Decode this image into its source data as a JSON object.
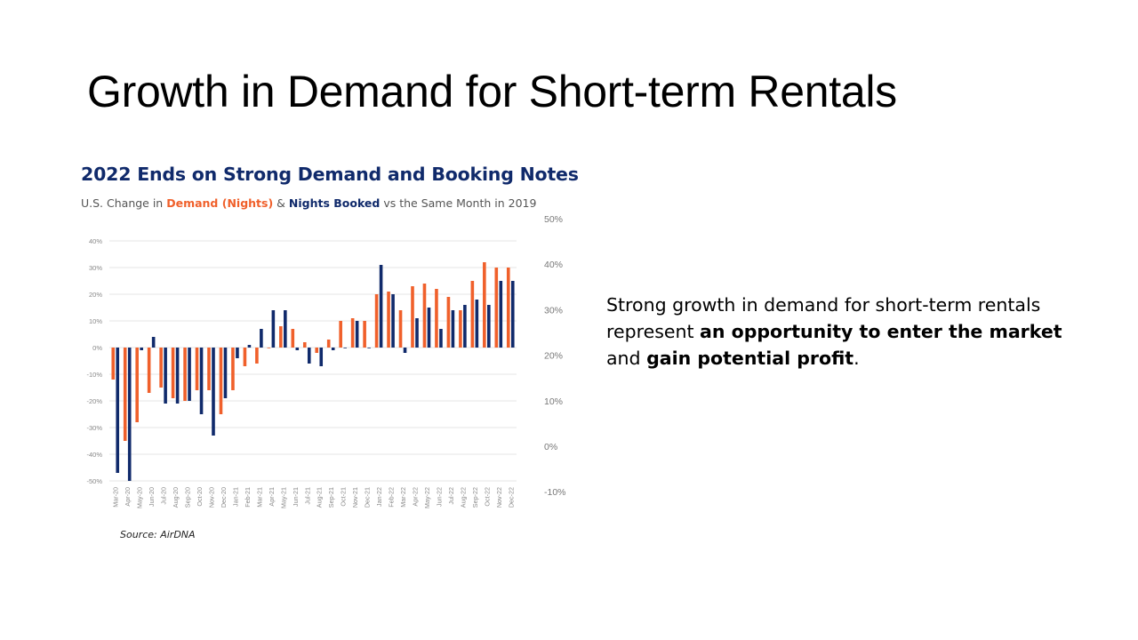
{
  "slide": {
    "title": "Growth in Demand for Short-term Rentals",
    "body_text_1": "Strong growth in demand for short-term rentals represent ",
    "body_bold_1": "an opportunity to enter the market",
    "body_text_2": " and ",
    "body_bold_2": "gain potential profit",
    "body_text_3": "."
  },
  "chart_data": {
    "type": "bar",
    "title": "2022 Ends on Strong Demand and Booking Notes",
    "subtitle_prefix": "U.S. Change in ",
    "subtitle_demand": "Demand (Nights)",
    "subtitle_mid": " & ",
    "subtitle_booked": "Nights Booked",
    "subtitle_suffix": " vs the Same Month in 2019",
    "source": "Source: AirDNA",
    "categories": [
      "Mar-20",
      "Apr-20",
      "May-20",
      "Jun-20",
      "Jul-20",
      "Aug-20",
      "Sep-20",
      "Oct-20",
      "Nov-20",
      "Dec-20",
      "Jan-21",
      "Feb-21",
      "Mar-21",
      "Apr-21",
      "May-21",
      "Jun-21",
      "Jul-21",
      "Aug-21",
      "Sep-21",
      "Oct-21",
      "Nov-21",
      "Dec-21",
      "Jan-22",
      "Feb-22",
      "Mar-22",
      "Apr-22",
      "May-22",
      "Jun-22",
      "Jul-22",
      "Aug-22",
      "Sep-22",
      "Oct-22",
      "Nov-22",
      "Dec-22"
    ],
    "series": [
      {
        "name": "Demand (Nights)",
        "color": "#f0602b",
        "values": [
          -12,
          -35,
          -28,
          -17,
          -15,
          -19,
          -20,
          -16,
          -16,
          -25,
          -16,
          -7,
          -6,
          0,
          8,
          7,
          2,
          -2,
          3,
          10,
          11,
          10,
          20,
          21,
          14,
          23,
          24,
          22,
          19,
          14,
          25,
          32,
          30,
          30
        ]
      },
      {
        "name": "Nights Booked",
        "color": "#102a6b",
        "values": [
          -47,
          -50,
          -1,
          4,
          -21,
          -21,
          -20,
          -25,
          -33,
          -19,
          -4,
          1,
          7,
          14,
          14,
          -1,
          -6,
          -7,
          -1,
          0,
          10,
          0,
          31,
          20,
          -2,
          11,
          15,
          7,
          14,
          16,
          18,
          16,
          25,
          25
        ]
      }
    ],
    "ylim": [
      -50,
      40
    ],
    "left_ticks": [
      "40%",
      "30%",
      "20%",
      "10%",
      "0%",
      "-10%",
      "-20%",
      "-30%",
      "-40%",
      "-50%"
    ],
    "right_ticks": [
      "50%",
      "40%",
      "30%",
      "20%",
      "10%",
      "0%",
      "-10%"
    ],
    "grid": true
  }
}
